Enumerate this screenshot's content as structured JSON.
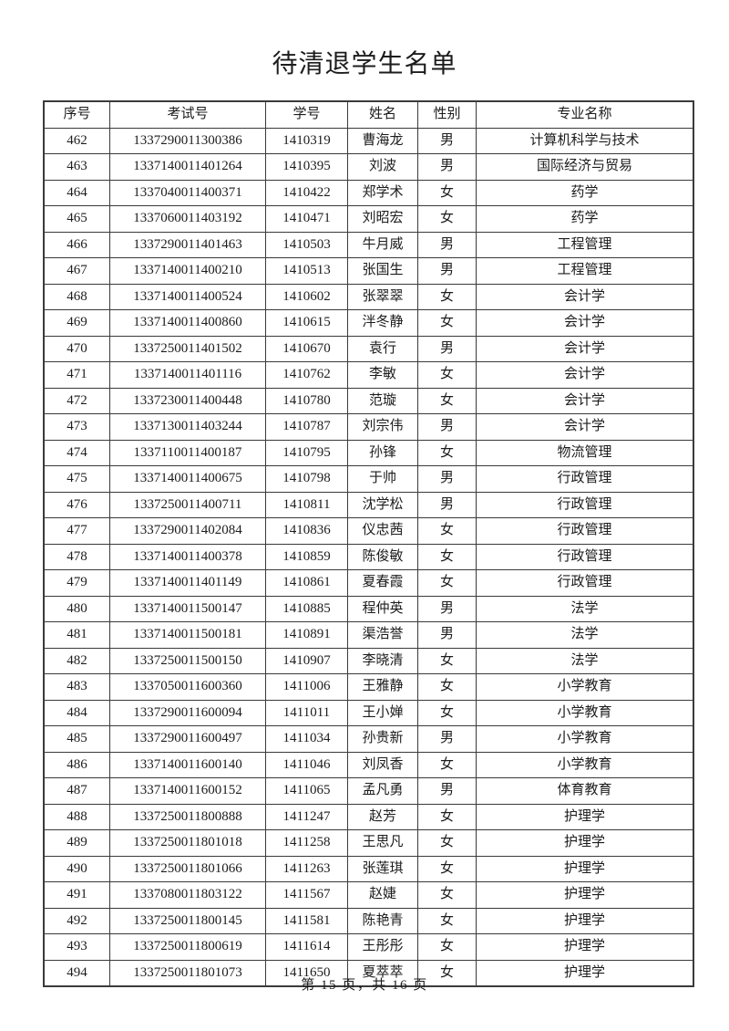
{
  "page": {
    "title": "待清退学生名单",
    "footer": "第 15 页，共 16 页"
  },
  "table": {
    "headers": [
      "序号",
      "考试号",
      "学号",
      "姓名",
      "性别",
      "专业名称"
    ],
    "rows": [
      [
        "462",
        "1337290011300386",
        "1410319",
        "曹海龙",
        "男",
        "计算机科学与技术"
      ],
      [
        "463",
        "1337140011401264",
        "1410395",
        "刘波",
        "男",
        "国际经济与贸易"
      ],
      [
        "464",
        "1337040011400371",
        "1410422",
        "郑学术",
        "女",
        "药学"
      ],
      [
        "465",
        "1337060011403192",
        "1410471",
        "刘昭宏",
        "女",
        "药学"
      ],
      [
        "466",
        "1337290011401463",
        "1410503",
        "牛月威",
        "男",
        "工程管理"
      ],
      [
        "467",
        "1337140011400210",
        "1410513",
        "张国生",
        "男",
        "工程管理"
      ],
      [
        "468",
        "1337140011400524",
        "1410602",
        "张翠翠",
        "女",
        "会计学"
      ],
      [
        "469",
        "1337140011400860",
        "1410615",
        "泮冬静",
        "女",
        "会计学"
      ],
      [
        "470",
        "1337250011401502",
        "1410670",
        "袁行",
        "男",
        "会计学"
      ],
      [
        "471",
        "1337140011401116",
        "1410762",
        "李敏",
        "女",
        "会计学"
      ],
      [
        "472",
        "1337230011400448",
        "1410780",
        "范璇",
        "女",
        "会计学"
      ],
      [
        "473",
        "1337130011403244",
        "1410787",
        "刘宗伟",
        "男",
        "会计学"
      ],
      [
        "474",
        "1337110011400187",
        "1410795",
        "孙锋",
        "女",
        "物流管理"
      ],
      [
        "475",
        "1337140011400675",
        "1410798",
        "于帅",
        "男",
        "行政管理"
      ],
      [
        "476",
        "1337250011400711",
        "1410811",
        "沈学松",
        "男",
        "行政管理"
      ],
      [
        "477",
        "1337290011402084",
        "1410836",
        "仪忠茜",
        "女",
        "行政管理"
      ],
      [
        "478",
        "1337140011400378",
        "1410859",
        "陈俊敏",
        "女",
        "行政管理"
      ],
      [
        "479",
        "1337140011401149",
        "1410861",
        "夏春霞",
        "女",
        "行政管理"
      ],
      [
        "480",
        "1337140011500147",
        "1410885",
        "程仲英",
        "男",
        "法学"
      ],
      [
        "481",
        "1337140011500181",
        "1410891",
        "渠浩誉",
        "男",
        "法学"
      ],
      [
        "482",
        "1337250011500150",
        "1410907",
        "李晓清",
        "女",
        "法学"
      ],
      [
        "483",
        "1337050011600360",
        "1411006",
        "王雅静",
        "女",
        "小学教育"
      ],
      [
        "484",
        "1337290011600094",
        "1411011",
        "王小婵",
        "女",
        "小学教育"
      ],
      [
        "485",
        "1337290011600497",
        "1411034",
        "孙贵新",
        "男",
        "小学教育"
      ],
      [
        "486",
        "1337140011600140",
        "1411046",
        "刘凤香",
        "女",
        "小学教育"
      ],
      [
        "487",
        "1337140011600152",
        "1411065",
        "孟凡勇",
        "男",
        "体育教育"
      ],
      [
        "488",
        "1337250011800888",
        "1411247",
        "赵芳",
        "女",
        "护理学"
      ],
      [
        "489",
        "1337250011801018",
        "1411258",
        "王思凡",
        "女",
        "护理学"
      ],
      [
        "490",
        "1337250011801066",
        "1411263",
        "张莲琪",
        "女",
        "护理学"
      ],
      [
        "491",
        "1337080011803122",
        "1411567",
        "赵婕",
        "女",
        "护理学"
      ],
      [
        "492",
        "1337250011800145",
        "1411581",
        "陈艳青",
        "女",
        "护理学"
      ],
      [
        "493",
        "1337250011800619",
        "1411614",
        "王彤彤",
        "女",
        "护理学"
      ],
      [
        "494",
        "1337250011801073",
        "1411650",
        "夏萃萃",
        "女",
        "护理学"
      ]
    ]
  }
}
